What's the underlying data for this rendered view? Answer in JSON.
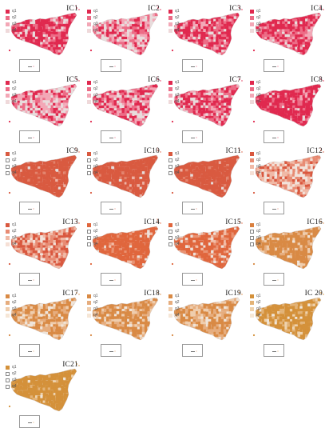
{
  "legend_labels": [
    "q1",
    "q2",
    "q3",
    "q4"
  ],
  "panels": [
    {
      "title": "IC1",
      "palette": "red",
      "fills": [
        0.55,
        0.25,
        0.12,
        0.08
      ],
      "legend_colors": [
        "#e0294f",
        "#ec6c86",
        "#f3a7b6",
        "#efd9da"
      ]
    },
    {
      "title": "IC2",
      "palette": "red",
      "fills": [
        0.2,
        0.25,
        0.25,
        0.3
      ],
      "legend_colors": [
        "#e0294f",
        "#ec6c86",
        "#f3a7b6",
        "#efd9da"
      ]
    },
    {
      "title": "IC3",
      "palette": "red",
      "fills": [
        0.55,
        0.25,
        0.12,
        0.08
      ],
      "legend_colors": [
        "#e0294f",
        "#ec6c86",
        "#f3a7b6",
        "#efd9da"
      ]
    },
    {
      "title": "IC4",
      "palette": "red",
      "fills": [
        0.5,
        0.25,
        0.15,
        0.1
      ],
      "legend_colors": [
        "#e0294f",
        "#ec6c86",
        "#f3a7b6",
        "#efd9da"
      ]
    },
    {
      "title": "IC5",
      "palette": "red",
      "fills": [
        0.2,
        0.2,
        0.25,
        0.35
      ],
      "legend_colors": [
        "#e0294f",
        "#ec6c86",
        "#f3a7b6",
        "#efd9da"
      ]
    },
    {
      "title": "IC6",
      "palette": "red",
      "fills": [
        0.35,
        0.25,
        0.2,
        0.2
      ],
      "legend_colors": [
        "#e0294f",
        "#ec6c86",
        "#f3a7b6",
        "#efd9da"
      ]
    },
    {
      "title": "IC7",
      "palette": "red",
      "fills": [
        0.45,
        0.25,
        0.15,
        0.15
      ],
      "legend_colors": [
        "#e0294f",
        "#ec6c86",
        "#f3a7b6",
        "#efd9da"
      ]
    },
    {
      "title": "IC8",
      "palette": "red",
      "fills": [
        0.75,
        0.15,
        0.05,
        0.05
      ],
      "legend_colors": [
        "#e0294f",
        "#ec6c86",
        "#f3a7b6",
        "#efd9da"
      ]
    },
    {
      "title": "IC9",
      "palette": "orange",
      "fills": [
        0.92,
        0.04,
        0.02,
        0.02
      ],
      "legend_colors": [
        "#d95a40",
        "#ffffff",
        "#ffffff",
        "#ffffff"
      ]
    },
    {
      "title": "IC10",
      "palette": "orange",
      "fills": [
        0.9,
        0.05,
        0.03,
        0.02
      ],
      "legend_colors": [
        "#d95a40",
        "#ffffff",
        "#ffffff",
        "#ffffff"
      ]
    },
    {
      "title": "IC11",
      "palette": "orange",
      "fills": [
        0.92,
        0.04,
        0.02,
        0.02
      ],
      "legend_colors": [
        "#d95a40",
        "#ffffff",
        "#ffffff",
        "#ffffff"
      ]
    },
    {
      "title": "IC12",
      "palette": "salmon",
      "fills": [
        0.2,
        0.25,
        0.25,
        0.3
      ],
      "legend_colors": [
        "#d9583f",
        "#e88b73",
        "#f0b9a6",
        "#f6e0d6"
      ]
    },
    {
      "title": "IC13",
      "palette": "salmon",
      "fills": [
        0.4,
        0.3,
        0.2,
        0.1
      ],
      "legend_colors": [
        "#d9583f",
        "#e88b73",
        "#f0b9a6",
        "#f6e0d6"
      ]
    },
    {
      "title": "IC14",
      "palette": "coral",
      "fills": [
        0.85,
        0.07,
        0.04,
        0.04
      ],
      "legend_colors": [
        "#e0663d",
        "#ffffff",
        "#ffffff",
        "#ffffff"
      ]
    },
    {
      "title": "IC15",
      "palette": "coral",
      "fills": [
        0.65,
        0.15,
        0.1,
        0.1
      ],
      "legend_colors": [
        "#e0663d",
        "#ffffff",
        "#ffffff",
        "#ffffff"
      ]
    },
    {
      "title": "IC16",
      "palette": "amber",
      "fills": [
        0.7,
        0.15,
        0.1,
        0.05
      ],
      "legend_colors": [
        "#d9803f",
        "#ffffff",
        "#ffffff",
        "#ffffff"
      ]
    },
    {
      "title": "IC17",
      "palette": "amber",
      "fills": [
        0.45,
        0.25,
        0.2,
        0.1
      ],
      "legend_colors": [
        "#d98a45",
        "#e6ad7e",
        "#efcdad",
        "#f6e6d6"
      ]
    },
    {
      "title": "IC18",
      "palette": "amber",
      "fills": [
        0.55,
        0.25,
        0.12,
        0.08
      ],
      "legend_colors": [
        "#d98a45",
        "#e6ad7e",
        "#efcdad",
        "#f6e6d6"
      ]
    },
    {
      "title": "IC19",
      "palette": "amber",
      "fills": [
        0.5,
        0.25,
        0.15,
        0.1
      ],
      "legend_colors": [
        "#d98a45",
        "#e6ad7e",
        "#efcdad",
        "#f6e6d6"
      ]
    },
    {
      "title": "IC 20",
      "palette": "gold",
      "fills": [
        0.7,
        0.15,
        0.1,
        0.05
      ],
      "legend_colors": [
        "#d4913a",
        "#e3b377",
        "#eed2ad",
        "#f6e8d6"
      ]
    },
    {
      "title": "IC21",
      "palette": "gold",
      "fills": [
        0.88,
        0.06,
        0.03,
        0.03
      ],
      "legend_colors": [
        "#d4913a",
        "#ffffff",
        "#ffffff",
        "#ffffff"
      ]
    }
  ],
  "palettes": {
    "red": [
      "#e0294f",
      "#ec6c86",
      "#f3a7b6",
      "#e8dcdc"
    ],
    "orange": [
      "#d95a40",
      "#e3836c",
      "#edb3a6",
      "#e5dcda"
    ],
    "salmon": [
      "#d9583f",
      "#e88b73",
      "#f0b9a6",
      "#f2e2da"
    ],
    "coral": [
      "#e0663d",
      "#e99272",
      "#f1bca6",
      "#ece2dc"
    ],
    "amber": [
      "#d98a45",
      "#e6ad7e",
      "#efcdad",
      "#efe4d9"
    ],
    "gold": [
      "#d4913a",
      "#e3b377",
      "#eed2ad",
      "#efe5d8"
    ]
  }
}
